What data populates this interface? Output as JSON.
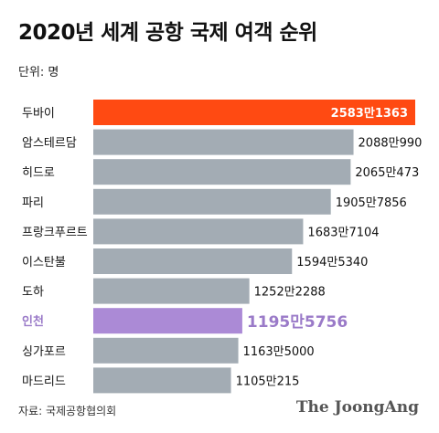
{
  "title": "2020년 세계 공항 국제 여객 순위",
  "unit_label": "단위: 명",
  "source": "자료: 국제공항협의회",
  "logo_text": "The JoongAng",
  "colors": {
    "bar_default": "#a3acb4",
    "bar_top": "#ff4a12",
    "bar_highlight": "#ab8ad6",
    "highlight_text": "#9a7ac8"
  },
  "chart_data": {
    "type": "bar",
    "orientation": "horizontal",
    "categories": [
      "두바이",
      "암스테르담",
      "히드로",
      "파리",
      "프랑크푸르트",
      "이스탄불",
      "도하",
      "인천",
      "싱가포르",
      "마드리드"
    ],
    "values": [
      25831363,
      20880990,
      20650473,
      19057856,
      16837104,
      15945340,
      12522288,
      11955756,
      11635000,
      11050215
    ],
    "value_labels": [
      "2583만1363",
      "2088만990",
      "2065만473",
      "1905만7856",
      "1683만7104",
      "1594만5340",
      "1252만2288",
      "1195만5756",
      "1163만5000",
      "1105만215"
    ],
    "highlight_top": "두바이",
    "highlight": "인천"
  }
}
